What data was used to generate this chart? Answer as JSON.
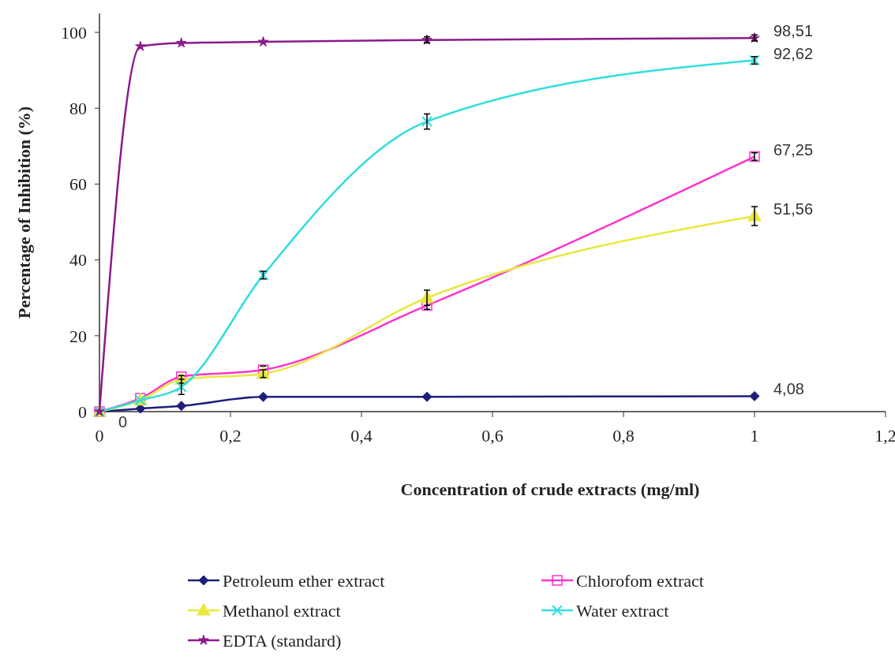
{
  "chart_data": {
    "type": "line",
    "xlabel": "Concentration of crude extracts (mg/ml)",
    "ylabel": "Percentage of Inhibition (%)",
    "x": [
      0,
      0.0625,
      0.125,
      0.25,
      0.5,
      1
    ],
    "xlim": [
      0,
      1.2
    ],
    "xticks": [
      0,
      {
        "value": 0.2,
        "label": "0,2"
      },
      {
        "value": 0.4,
        "label": "0,4"
      },
      {
        "value": 0.6,
        "label": "0,6"
      },
      {
        "value": 0.8,
        "label": "0,8"
      },
      1,
      {
        "value": 1.2,
        "label": "1,2"
      }
    ],
    "ylim": [
      0,
      105
    ],
    "yticks": [
      0,
      20,
      40,
      60,
      80,
      100
    ],
    "grid": false,
    "legend": "bottom",
    "series": [
      {
        "name": "Petroleum ether extract",
        "color": "#1f1f7a",
        "marker": "diamond",
        "values": [
          0,
          0.8,
          1.5,
          3.9,
          3.9,
          4.08
        ],
        "value_labels": [
          "0",
          null,
          null,
          null,
          null,
          "4,08"
        ]
      },
      {
        "name": "Chlorofom extract",
        "color": "#ff33cc",
        "marker": "square",
        "values": [
          0,
          3.5,
          9.2,
          11,
          28,
          67.25
        ],
        "errors": [
          null,
          null,
          null,
          1,
          1,
          1
        ],
        "value_labels": [
          null,
          null,
          null,
          null,
          null,
          "67,25"
        ]
      },
      {
        "name": "Methanol extract",
        "color": "#e8e840",
        "marker": "triangle",
        "values": [
          0,
          3,
          8.5,
          10,
          30,
          51.56
        ],
        "errors": [
          null,
          null,
          1,
          1,
          2,
          2.5
        ],
        "value_labels": [
          null,
          null,
          null,
          null,
          null,
          "51,56"
        ]
      },
      {
        "name": "Water extract",
        "color": "#33dddd",
        "marker": "cross",
        "values": [
          0,
          3,
          6.5,
          36,
          76.5,
          92.62
        ],
        "errors": [
          null,
          null,
          2,
          1,
          2,
          1
        ],
        "value_labels": [
          null,
          null,
          null,
          null,
          null,
          "92,62"
        ]
      },
      {
        "name": "EDTA (standard)",
        "color": "#8b1a8b",
        "marker": "star",
        "values": [
          0,
          96.3,
          97.2,
          97.5,
          98,
          98.51
        ],
        "errors": [
          null,
          null,
          null,
          null,
          0.8,
          0.8
        ],
        "value_labels": [
          null,
          null,
          null,
          null,
          null,
          "98,51"
        ]
      }
    ]
  }
}
